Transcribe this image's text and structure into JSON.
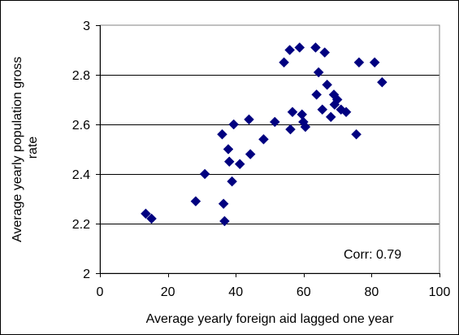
{
  "chart_data": {
    "type": "scatter",
    "xlabel": "Average yearly foreign aid lagged one year",
    "ylabel_lines": [
      "Average yearly population gross",
      "rate"
    ],
    "xlim": [
      0,
      100
    ],
    "ylim": [
      2,
      3
    ],
    "x_ticks": [
      0,
      20,
      40,
      60,
      80,
      100
    ],
    "y_ticks": [
      2,
      2.2,
      2.4,
      2.6,
      2.8,
      3
    ],
    "grid": "horizontal",
    "annotation": "Corr: 0.79",
    "marker": "diamond",
    "marker_color": "#000080",
    "points": [
      {
        "x": 13.5,
        "y": 2.24
      },
      {
        "x": 15.2,
        "y": 2.22
      },
      {
        "x": 28.2,
        "y": 2.29
      },
      {
        "x": 30.9,
        "y": 2.4
      },
      {
        "x": 36.0,
        "y": 2.56
      },
      {
        "x": 36.4,
        "y": 2.28
      },
      {
        "x": 36.7,
        "y": 2.21
      },
      {
        "x": 37.8,
        "y": 2.5
      },
      {
        "x": 38.1,
        "y": 2.45
      },
      {
        "x": 38.9,
        "y": 2.37
      },
      {
        "x": 39.4,
        "y": 2.6
      },
      {
        "x": 41.2,
        "y": 2.44
      },
      {
        "x": 43.9,
        "y": 2.62
      },
      {
        "x": 44.3,
        "y": 2.48
      },
      {
        "x": 48.2,
        "y": 2.54
      },
      {
        "x": 51.5,
        "y": 2.61
      },
      {
        "x": 54.2,
        "y": 2.85
      },
      {
        "x": 55.9,
        "y": 2.9
      },
      {
        "x": 56.1,
        "y": 2.58
      },
      {
        "x": 56.7,
        "y": 2.65
      },
      {
        "x": 58.8,
        "y": 2.91
      },
      {
        "x": 59.5,
        "y": 2.64
      },
      {
        "x": 59.9,
        "y": 2.61
      },
      {
        "x": 60.5,
        "y": 2.59
      },
      {
        "x": 63.5,
        "y": 2.91
      },
      {
        "x": 63.8,
        "y": 2.72
      },
      {
        "x": 64.4,
        "y": 2.81
      },
      {
        "x": 65.5,
        "y": 2.66
      },
      {
        "x": 66.2,
        "y": 2.89
      },
      {
        "x": 66.9,
        "y": 2.76
      },
      {
        "x": 68.0,
        "y": 2.63
      },
      {
        "x": 68.9,
        "y": 2.72
      },
      {
        "x": 69.1,
        "y": 2.68
      },
      {
        "x": 69.9,
        "y": 2.7
      },
      {
        "x": 71.0,
        "y": 2.66
      },
      {
        "x": 72.5,
        "y": 2.65
      },
      {
        "x": 75.5,
        "y": 2.56
      },
      {
        "x": 76.3,
        "y": 2.85
      },
      {
        "x": 80.9,
        "y": 2.85
      },
      {
        "x": 83.1,
        "y": 2.77
      }
    ]
  }
}
